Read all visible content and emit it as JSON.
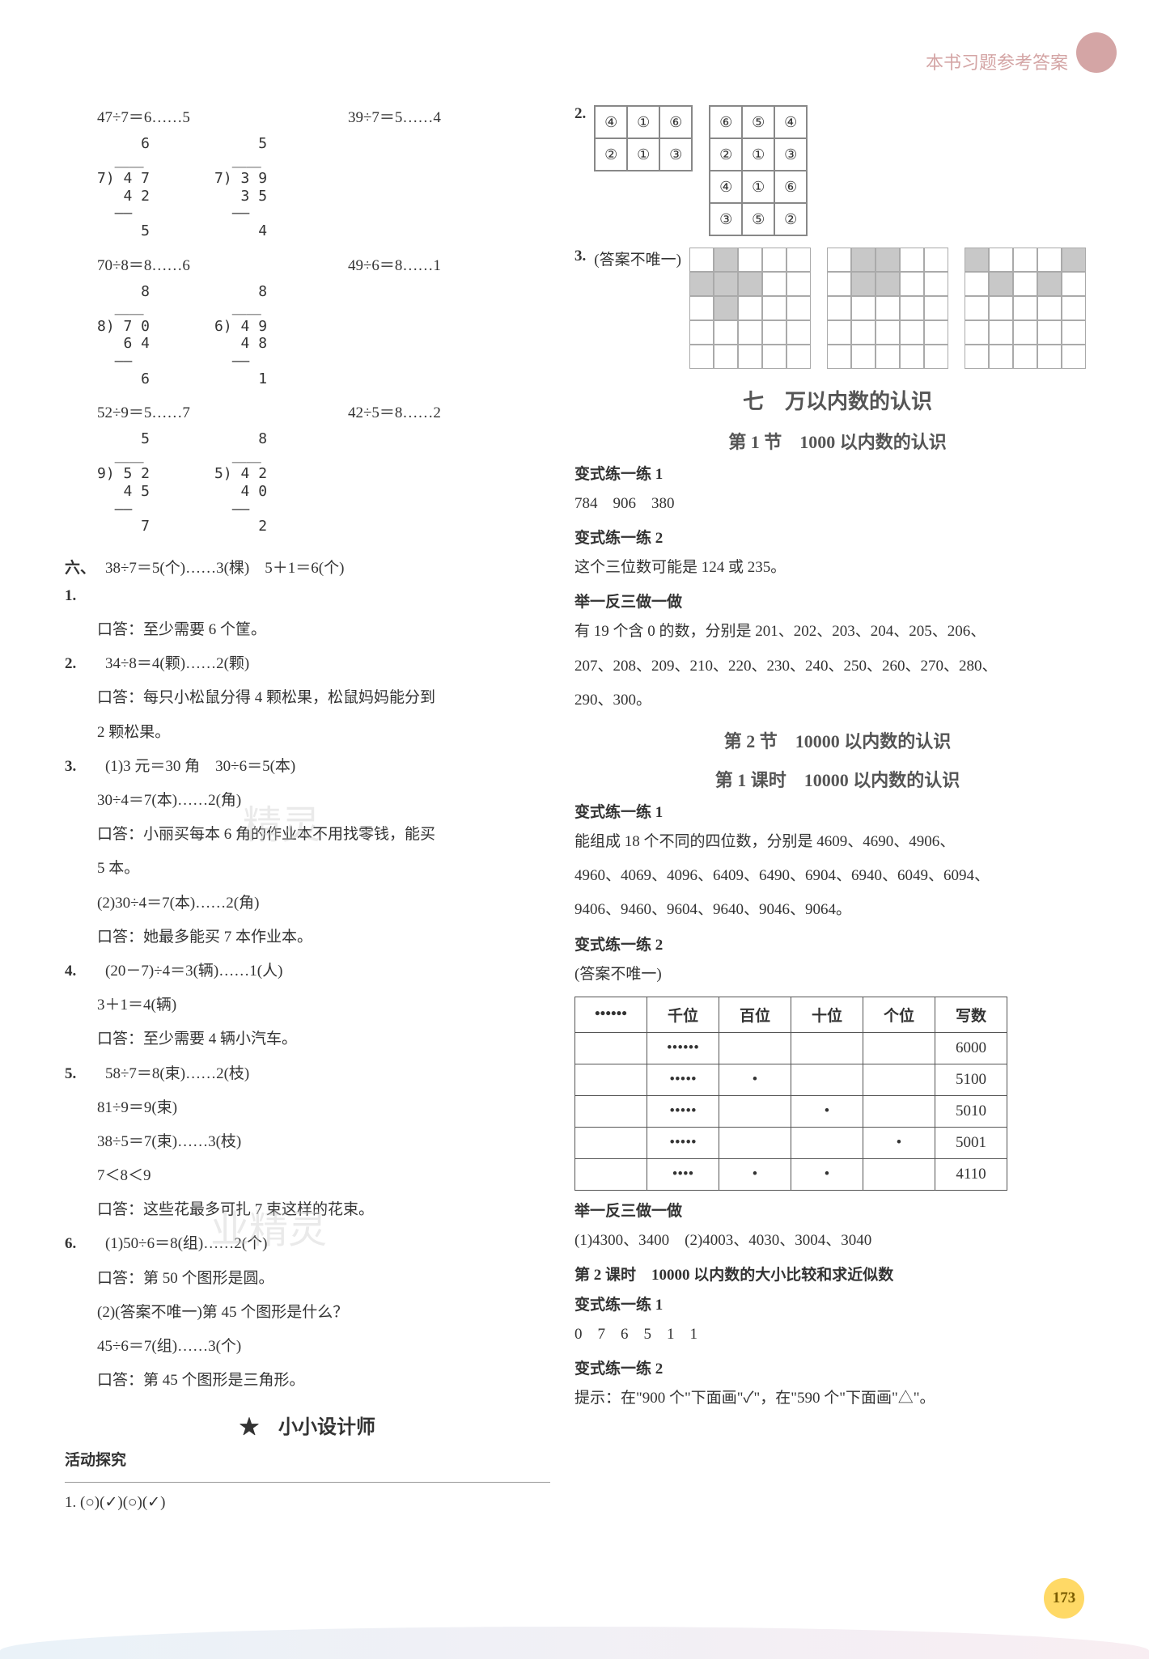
{
  "header": {
    "title": "本书习题参考答案"
  },
  "left": {
    "eq_rows": [
      {
        "a": "47÷7＝6……5",
        "b": "39÷7＝5……4"
      },
      {
        "a": "70÷8＝8……6",
        "b": "49÷6＝8……1"
      },
      {
        "a": "52÷9＝5……7",
        "b": "42÷5＝8……2"
      }
    ],
    "longdiv_pairs": [
      {
        "a": "     6\n  ＿＿\n7) 4 7\n   4 2\n  ――\n     5",
        "b": "     5\n  ＿＿\n7) 3 9\n   3 5\n  ――\n     4"
      },
      {
        "a": "     8\n  ＿＿\n8) 7 0\n   6 4\n  ――\n     6",
        "b": "     8\n  ＿＿\n6) 4 9\n   4 8\n  ――\n     1"
      },
      {
        "a": "     5\n  ＿＿\n9) 5 2\n   4 5\n  ――\n     7",
        "b": "     8\n  ＿＿\n5) 4 2\n   4 0\n  ――\n     2"
      }
    ],
    "six": {
      "label": "六、1.",
      "q1_l1": "38÷7＝5(个)……3(棵)　5＋1＝6(个)",
      "q1_l2": "口答：至少需要 6 个筐。",
      "q2_label": "2.",
      "q2_l1": "34÷8＝4(颗)……2(颗)",
      "q2_l2": "口答：每只小松鼠分得 4 颗松果，松鼠妈妈能分到",
      "q2_l3": "2 颗松果。",
      "q3_label": "3.",
      "q3_l1": "(1)3 元＝30 角　30÷6＝5(本)",
      "q3_l2": "30÷4＝7(本)……2(角)",
      "q3_l3": "口答：小丽买每本 6 角的作业本不用找零钱，能买",
      "q3_l4": "5 本。",
      "q3_l5": "(2)30÷4＝7(本)……2(角)",
      "q3_l6": "口答：她最多能买 7 本作业本。",
      "q4_label": "4.",
      "q4_l1": "(20－7)÷4＝3(辆)……1(人)",
      "q4_l2": "3＋1＝4(辆)",
      "q4_l3": "口答：至少需要 4 辆小汽车。",
      "q5_label": "5.",
      "q5_l1": "58÷7＝8(束)……2(枝)",
      "q5_l2": "81÷9＝9(束)",
      "q5_l3": "38÷5＝7(束)……3(枝)",
      "q5_l4": "7＜8＜9",
      "q5_l5": "口答：这些花最多可扎 7 束这样的花束。",
      "q6_label": "6.",
      "q6_l1": "(1)50÷6＝8(组)……2(个)",
      "q6_l2": "口答：第 50 个图形是圆。",
      "q6_l3": "(2)(答案不唯一)第 45 个图形是什么？",
      "q6_l4": "45÷6＝7(组)……3(个)",
      "q6_l5": "口答：第 45 个图形是三角形。"
    },
    "star_title": "★　小小设计师",
    "activity_label": "活动探究",
    "activity_q1": "1. (○)(✓)(○)(✓)"
  },
  "right": {
    "q2_label": "2.",
    "q2_grids": {
      "g1": [
        [
          "④",
          "①",
          "⑥"
        ],
        [
          "②",
          "①",
          "③"
        ]
      ],
      "g2": [
        [
          "⑥",
          "⑤",
          "④"
        ],
        [
          "②",
          "①",
          "③"
        ],
        [
          "④",
          "①",
          "⑥"
        ],
        [
          "③",
          "⑤",
          "②"
        ]
      ]
    },
    "q3_label": "3.",
    "q3_note": "(答案不唯一)",
    "q3_patterns": [
      [
        [
          0,
          1,
          0,
          0,
          0
        ],
        [
          1,
          1,
          1,
          0,
          0
        ],
        [
          0,
          1,
          0,
          0,
          0
        ],
        [
          0,
          0,
          0,
          0,
          0
        ],
        [
          0,
          0,
          0,
          0,
          0
        ]
      ],
      [
        [
          0,
          1,
          1,
          0,
          0
        ],
        [
          0,
          1,
          1,
          0,
          0
        ],
        [
          0,
          0,
          0,
          0,
          0
        ],
        [
          0,
          0,
          0,
          0,
          0
        ],
        [
          0,
          0,
          0,
          0,
          0
        ]
      ],
      [
        [
          1,
          0,
          0,
          0,
          1
        ],
        [
          0,
          1,
          0,
          1,
          0
        ],
        [
          0,
          0,
          0,
          0,
          0
        ],
        [
          0,
          0,
          0,
          0,
          0
        ],
        [
          0,
          0,
          0,
          0,
          0
        ]
      ]
    ],
    "chapter": "七　万以内数的认识",
    "section1": "第 1 节　1000 以内数的认识",
    "bsl1_label": "变式练一练 1",
    "bsl1_text": "784　906　380",
    "bsl2_label": "变式练一练 2",
    "bsl2_text": "这个三位数可能是 124 或 235。",
    "jyfs_label": "举一反三做一做",
    "jyfs_l1": "有 19 个含 0 的数，分别是 201、202、203、204、205、206、",
    "jyfs_l2": "207、208、209、210、220、230、240、250、260、270、280、",
    "jyfs_l3": "290、300。",
    "section2": "第 2 节　10000 以内数的认识",
    "lesson1": "第 1 课时　10000 以内数的认识",
    "s2_bsl1_label": "变式练一练 1",
    "s2_bsl1_l1": "能组成 18 个不同的四位数，分别是 4609、4690、4906、",
    "s2_bsl1_l2": "4960、4069、4096、6409、6490、6904、6940、6049、6094、",
    "s2_bsl1_l3": "9406、9460、9604、9640、9046、9064。",
    "s2_bsl2_label": "变式练一练 2",
    "s2_bsl2_note": "(答案不唯一)",
    "place_table": {
      "header": [
        "••••••",
        "千位",
        "百位",
        "十位",
        "个位",
        "写数"
      ],
      "rows": [
        [
          "",
          "••••••",
          "",
          "",
          "",
          "6000"
        ],
        [
          "",
          "•••••",
          "•",
          "",
          "",
          "5100"
        ],
        [
          "",
          "•••••",
          "",
          "•",
          "",
          "5010"
        ],
        [
          "",
          "•••••",
          "",
          "",
          "•",
          "5001"
        ],
        [
          "",
          "••••",
          "•",
          "•",
          "",
          "4110"
        ]
      ]
    },
    "s2_jyfs_label": "举一反三做一做",
    "s2_jyfs_text": "(1)4300、3400　(2)4003、4030、3004、3040",
    "lesson2": "第 2 课时　10000 以内数的大小比较和求近似数",
    "l2_bsl1_label": "变式练一练 1",
    "l2_bsl1_text": "0　7　6　5　1　1",
    "l2_bsl2_label": "变式练一练 2",
    "l2_bsl2_text": "提示：在\"900 个\"下面画\"✓\"，在\"590 个\"下面画\"△\"。"
  },
  "page_number": "173",
  "colors": {
    "text": "#333333",
    "accent_pink": "#d4a5a5",
    "page_bg": "#ffffff",
    "pagenum_bg": "#ffd966",
    "pagenum_text": "#7a5c00",
    "grid_border": "#888888",
    "shaded": "#c8c8c8",
    "watermark": "#cccccc"
  }
}
